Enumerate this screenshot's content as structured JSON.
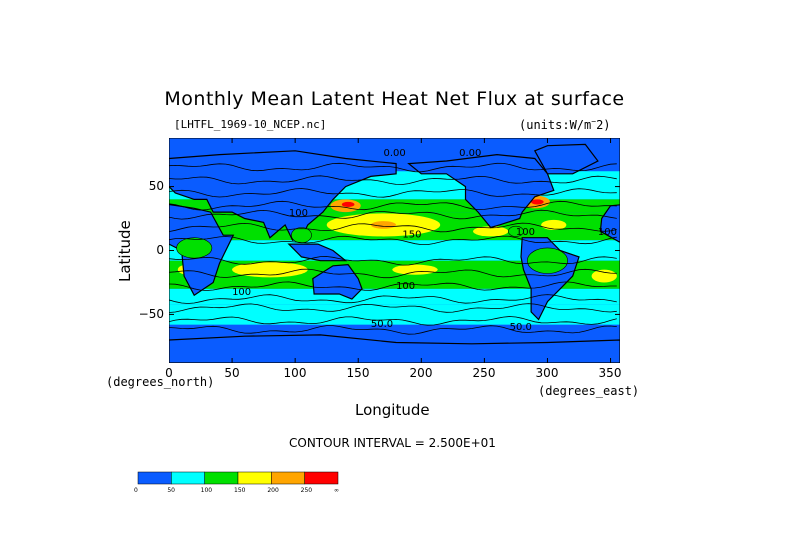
{
  "chart_data": {
    "type": "heatmap",
    "title": "Monthly Mean Latent Heat Net Flux at surface",
    "subtitle_left": "[LHTFL_1969-10_NCEP.nc]",
    "subtitle_right": "(units:W/m^2)",
    "xlabel": "Longitude",
    "ylabel": "Latitude",
    "x_unit_label": "(degrees_east)",
    "y_unit_label": "(degrees_north)",
    "xlim": [
      0,
      357.5
    ],
    "ylim": [
      -88,
      88
    ],
    "xticks": [
      "0",
      "50",
      "100",
      "150",
      "200",
      "250",
      "300",
      "350"
    ],
    "yticks": [
      "50",
      "0",
      "−50"
    ],
    "contour_interval_text": "CONTOUR INTERVAL = 2.500E+01",
    "contour_labels": [
      "0.00",
      "0.00",
      "100",
      "100",
      "100",
      "50.0",
      "50.0",
      "100",
      "100",
      "150"
    ],
    "colorbar": {
      "colors": [
        "#0a5cff",
        "#00ffff",
        "#00e000",
        "#ffff00",
        "#ffa500",
        "#ff0000"
      ],
      "bounds": [
        "0",
        "50",
        "100",
        "150",
        "200",
        "250",
        "∞"
      ]
    },
    "ocean_color_levels": {
      "polar": "#0a5cff",
      "midlat": "#00ffff",
      "subtropic": "#00e000",
      "trade_max": "#ffff00"
    }
  }
}
